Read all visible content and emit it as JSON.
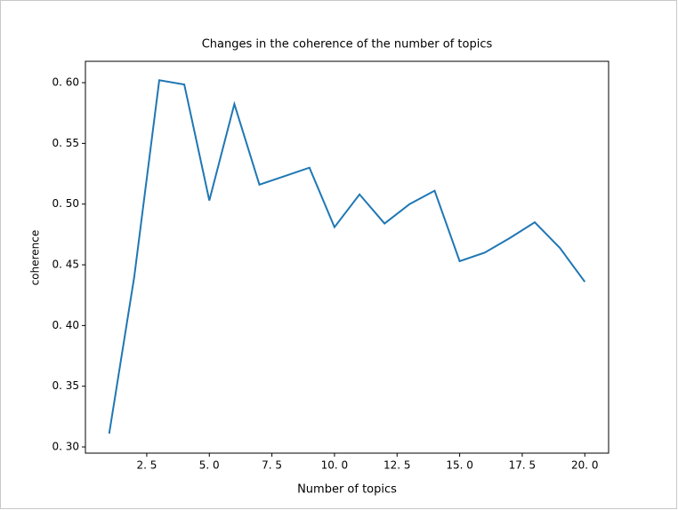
{
  "chart_data": {
    "type": "line",
    "title": "Changes in the coherence of the number of topics",
    "x_label": "Number of topics",
    "y_label": "coherence",
    "x": [
      1,
      2,
      3,
      4,
      5,
      6,
      7,
      8,
      9,
      10,
      11,
      12,
      13,
      14,
      15,
      16,
      17,
      18,
      19,
      20
    ],
    "series": [
      {
        "name": "coherence",
        "color": "#1f77b4",
        "values": [
          0.311,
          0.44,
          0.602,
          0.5985,
          0.503,
          0.5824,
          0.516,
          0.523,
          0.53,
          0.481,
          0.508,
          0.484,
          0.5,
          0.511,
          0.453,
          0.46,
          0.472,
          0.485,
          0.464,
          0.436
        ]
      }
    ],
    "xlim": [
      0.05,
      20.95
    ],
    "ylim": [
      0.2949,
      0.6176
    ],
    "xticks": [
      {
        "value": 2.5,
        "label": "2. 5"
      },
      {
        "value": 5,
        "label": "5. 0"
      },
      {
        "value": 7.5,
        "label": "7. 5"
      },
      {
        "value": 10,
        "label": "10. 0"
      },
      {
        "value": 12.5,
        "label": "12. 5"
      },
      {
        "value": 15,
        "label": "15. 0"
      },
      {
        "value": 17.5,
        "label": "17. 5"
      },
      {
        "value": 20,
        "label": "20. 0"
      }
    ],
    "yticks": [
      {
        "value": 0.3,
        "label": "0. 30"
      },
      {
        "value": 0.35,
        "label": "0. 35"
      },
      {
        "value": 0.4,
        "label": "0. 40"
      },
      {
        "value": 0.45,
        "label": "0. 45"
      },
      {
        "value": 0.5,
        "label": "0. 50"
      },
      {
        "value": 0.55,
        "label": "0. 55"
      },
      {
        "value": 0.6,
        "label": "0. 60"
      }
    ],
    "grid": false
  }
}
